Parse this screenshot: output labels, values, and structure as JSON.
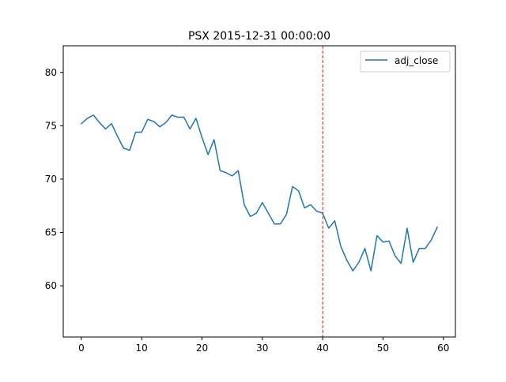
{
  "chart_data": {
    "type": "line",
    "title": "PSX 2015-12-31 00:00:00",
    "xlabel": "",
    "ylabel": "",
    "xlim": [
      -3,
      62
    ],
    "ylim": [
      55.2,
      82.5
    ],
    "x_ticks": [
      0,
      10,
      20,
      30,
      40,
      50,
      60
    ],
    "y_ticks": [
      60,
      65,
      70,
      75,
      80
    ],
    "x_tick_labels": [
      "0",
      "10",
      "20",
      "30",
      "40",
      "50",
      "60"
    ],
    "y_tick_labels": [
      "60",
      "65",
      "70",
      "75",
      "80"
    ],
    "grid": false,
    "legend": {
      "placement": "top-right",
      "entries": [
        "adj_close"
      ]
    },
    "vline": {
      "x": 40,
      "color": "#d62728",
      "style": "dashed"
    },
    "series": [
      {
        "name": "adj_close",
        "color": "#1f77b4",
        "x": [
          0,
          1,
          2,
          3,
          4,
          5,
          6,
          7,
          8,
          9,
          10,
          11,
          12,
          13,
          14,
          15,
          16,
          17,
          18,
          19,
          20,
          21,
          22,
          23,
          24,
          25,
          26,
          27,
          28,
          29,
          30,
          31,
          32,
          33,
          34,
          35,
          36,
          37,
          38,
          39,
          40,
          41,
          42,
          43,
          44,
          45,
          46,
          47,
          48,
          49,
          50,
          51,
          52,
          53,
          54,
          55,
          56,
          57,
          58,
          59
        ],
        "values": [
          75.2,
          75.7,
          76.0,
          75.3,
          74.7,
          75.2,
          74.0,
          72.9,
          72.7,
          74.4,
          74.4,
          75.6,
          75.4,
          74.9,
          75.3,
          76.0,
          75.8,
          75.8,
          74.7,
          75.7,
          73.9,
          72.3,
          73.7,
          70.8,
          70.6,
          70.3,
          70.8,
          67.6,
          66.5,
          66.8,
          67.8,
          66.8,
          65.8,
          65.8,
          66.7,
          69.3,
          68.9,
          67.3,
          67.6,
          67.0,
          66.8,
          65.4,
          66.1,
          63.7,
          62.4,
          61.4,
          62.2,
          63.5,
          61.4,
          64.7,
          64.1,
          64.2,
          62.8,
          62.1,
          65.4,
          62.2,
          63.5,
          63.5,
          64.3,
          65.5
        ]
      }
    ]
  }
}
